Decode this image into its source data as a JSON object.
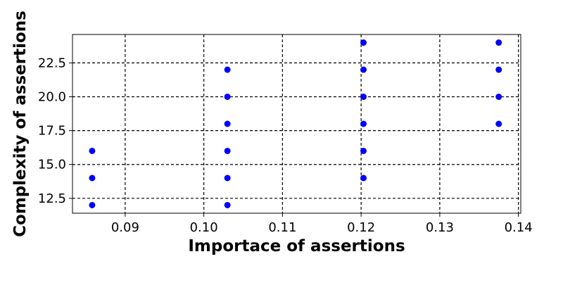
{
  "chart_data": {
    "type": "scatter",
    "title": "",
    "xlabel": "Importace of assertions",
    "ylabel": "Complexity of assertions",
    "xlim": [
      0.0833,
      0.1403
    ],
    "ylim": [
      11.4,
      24.6
    ],
    "x_ticks": [
      0.09,
      0.1,
      0.11,
      0.12,
      0.13,
      0.14
    ],
    "x_tick_labels": [
      "0.09",
      "0.10",
      "0.11",
      "0.12",
      "0.13",
      "0.14"
    ],
    "y_ticks": [
      12.5,
      15.0,
      17.5,
      20.0,
      22.5
    ],
    "y_tick_labels": [
      "12.5",
      "15.0",
      "17.5",
      "20.0",
      "22.5"
    ],
    "grid": true,
    "grid_style": "dashed",
    "marker_color": "#0000ff",
    "grid_color": "#000000",
    "series": [
      {
        "points": [
          {
            "x": 0.0858,
            "y": 12
          },
          {
            "x": 0.0858,
            "y": 14
          },
          {
            "x": 0.0858,
            "y": 16
          },
          {
            "x": 0.103,
            "y": 12
          },
          {
            "x": 0.103,
            "y": 14
          },
          {
            "x": 0.103,
            "y": 16
          },
          {
            "x": 0.103,
            "y": 18
          },
          {
            "x": 0.103,
            "y": 20
          },
          {
            "x": 0.103,
            "y": 22
          },
          {
            "x": 0.1203,
            "y": 14
          },
          {
            "x": 0.1203,
            "y": 16
          },
          {
            "x": 0.1203,
            "y": 18
          },
          {
            "x": 0.1203,
            "y": 20
          },
          {
            "x": 0.1203,
            "y": 22
          },
          {
            "x": 0.1203,
            "y": 24
          },
          {
            "x": 0.1375,
            "y": 18
          },
          {
            "x": 0.1375,
            "y": 20
          },
          {
            "x": 0.1375,
            "y": 22
          },
          {
            "x": 0.1375,
            "y": 24
          }
        ]
      }
    ]
  }
}
